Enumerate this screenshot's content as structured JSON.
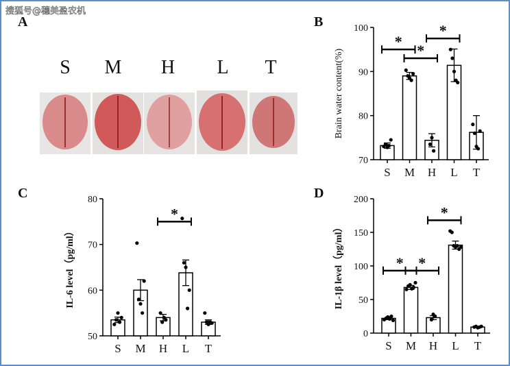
{
  "watermark": "搜狐号@穗美盈农机",
  "panel_a": {
    "label": "A",
    "letters": [
      "S",
      "M",
      "H",
      "L",
      "T"
    ]
  },
  "chart_data": [
    {
      "type": "bar",
      "panel": "B",
      "ylabel": "Brain water content(%)",
      "categories": [
        "S",
        "M",
        "H",
        "L",
        "T"
      ],
      "values": [
        73.2,
        89,
        74.4,
        91.4,
        76.2
      ],
      "errors": [
        0.6,
        0.8,
        1.5,
        3.7,
        3.8
      ],
      "points": [
        [
          73,
          73.5,
          72.8,
          73.2,
          74.5
        ],
        [
          90.3,
          89,
          88.5,
          88,
          89.5
        ],
        [
          73.5,
          75,
          72
        ],
        [
          95,
          93,
          90,
          88,
          87.5
        ],
        [
          78,
          76,
          73,
          72.5,
          76.5
        ]
      ],
      "ylim": [
        70,
        100
      ],
      "yticks": [
        70,
        80,
        90,
        100
      ],
      "significance": [
        {
          "pair": [
            0,
            1
          ],
          "y": 95,
          "label": "*"
        },
        {
          "pair": [
            1,
            2
          ],
          "y": 93,
          "label": "*"
        },
        {
          "pair": [
            2,
            3
          ],
          "y": 97.5,
          "label": "*"
        }
      ]
    },
    {
      "type": "bar",
      "panel": "C",
      "ylabel": "IL-6 level（pg/ml）",
      "categories": [
        "S",
        "M",
        "H",
        "L",
        "T"
      ],
      "values": [
        53.5,
        60,
        54,
        63.8,
        53
      ],
      "errors": [
        0.6,
        2.3,
        0.7,
        2.8,
        0.5
      ],
      "points": [
        [
          52.5,
          53.5,
          55,
          53,
          54
        ],
        [
          70.3,
          58,
          57,
          55,
          62
        ],
        [
          55,
          53,
          54,
          53.5
        ],
        [
          75.7,
          66,
          65,
          56,
          60
        ],
        [
          55,
          53,
          52.5,
          53,
          52.8
        ]
      ],
      "ylim": [
        50,
        80
      ],
      "yticks": [
        50,
        60,
        70,
        80
      ],
      "significance": [
        {
          "pair": [
            2,
            3
          ],
          "y": 75,
          "label": "*"
        }
      ]
    },
    {
      "type": "bar",
      "panel": "D",
      "ylabel": "IL-1β level（pg/ml）",
      "categories": [
        "S",
        "M",
        "H",
        "L",
        "T"
      ],
      "values": [
        22,
        68,
        23,
        131,
        9
      ],
      "errors": [
        2,
        3,
        3,
        6,
        1
      ],
      "points": [
        [
          20,
          22,
          24,
          21,
          25,
          19
        ],
        [
          65,
          70,
          72,
          66,
          68,
          75
        ],
        [
          20,
          28,
          25
        ],
        [
          152,
          150,
          130,
          128,
          130,
          125,
          128
        ],
        [
          9,
          10,
          8,
          9,
          10
        ]
      ],
      "ylim": [
        0,
        200
      ],
      "yticks": [
        0,
        50,
        100,
        150,
        200
      ],
      "significance": [
        {
          "pair": [
            0,
            1
          ],
          "y": 93,
          "label": "*"
        },
        {
          "pair": [
            1,
            2
          ],
          "y": 93,
          "label": "*"
        },
        {
          "pair": [
            2,
            3
          ],
          "y": 168,
          "label": "*"
        }
      ]
    }
  ]
}
